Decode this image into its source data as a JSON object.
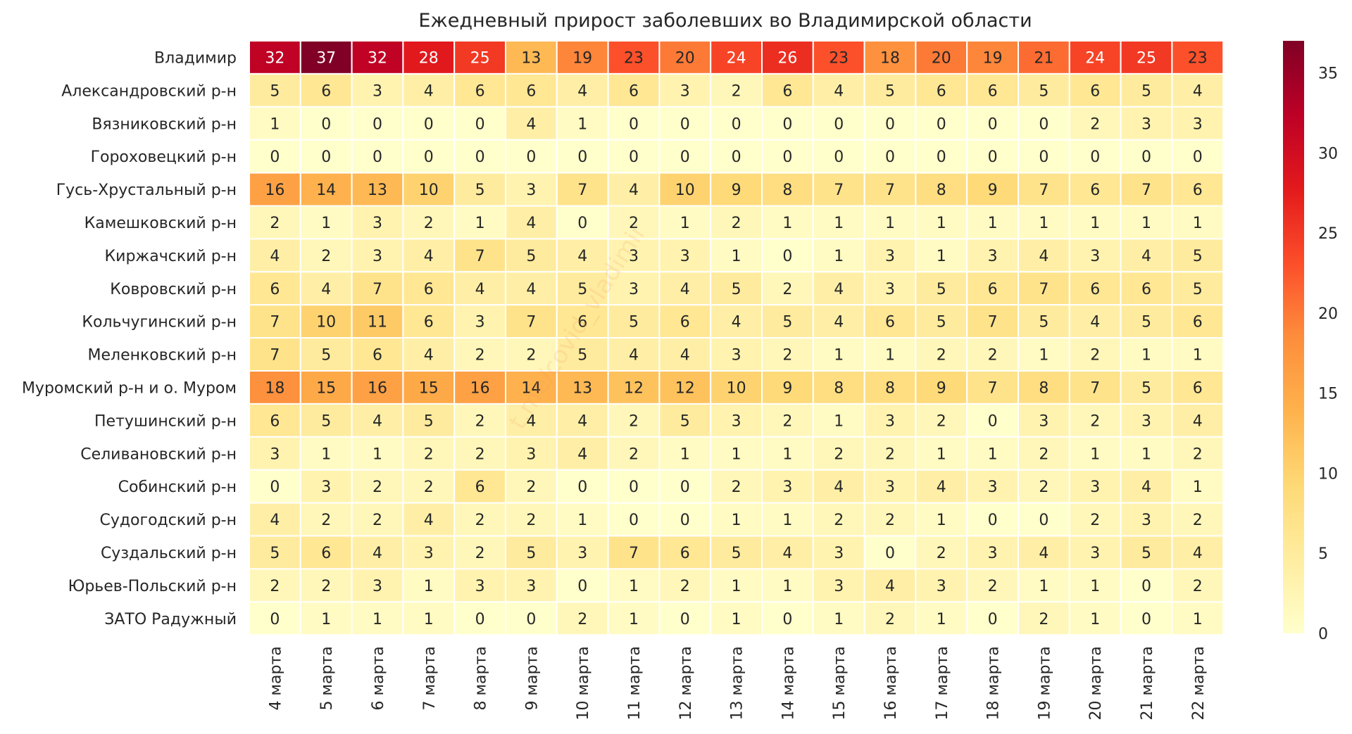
{
  "chart_data": {
    "type": "heatmap",
    "title": "Ежедневный прирост заболевших во Владимирской области",
    "rows": [
      "Владимир",
      "Александровский р-н",
      "Вязниковский р-н",
      "Гороховецкий р-н",
      "Гусь-Хрустальный р-н",
      "Камешковский р-н",
      "Киржачский р-н",
      "Ковровский р-н",
      "Кольчугинский р-н",
      "Меленковский р-н",
      "Муромский р-н и о. Муром",
      "Петушинский р-н",
      "Селивановский р-н",
      "Собинский р-н",
      "Судогодский р-н",
      "Суздальский р-н",
      "Юрьев-Польский р-н",
      "ЗАТО Радужный"
    ],
    "columns": [
      "4 марта",
      "5 марта",
      "6 марта",
      "7 марта",
      "8 марта",
      "9 марта",
      "10 марта",
      "11 марта",
      "12 марта",
      "13 марта",
      "14 марта",
      "15 марта",
      "16 марта",
      "17 марта",
      "18 марта",
      "19 марта",
      "20 марта",
      "21 марта",
      "22 марта"
    ],
    "values": [
      [
        32,
        37,
        32,
        28,
        25,
        13,
        19,
        23,
        20,
        24,
        26,
        23,
        18,
        20,
        19,
        21,
        24,
        25,
        23
      ],
      [
        5,
        6,
        3,
        4,
        6,
        6,
        4,
        6,
        3,
        2,
        6,
        4,
        5,
        6,
        6,
        5,
        6,
        5,
        4
      ],
      [
        1,
        0,
        0,
        0,
        0,
        4,
        1,
        0,
        0,
        0,
        0,
        0,
        0,
        0,
        0,
        0,
        2,
        3,
        3
      ],
      [
        0,
        0,
        0,
        0,
        0,
        0,
        0,
        0,
        0,
        0,
        0,
        0,
        0,
        0,
        0,
        0,
        0,
        0,
        0
      ],
      [
        16,
        14,
        13,
        10,
        5,
        3,
        7,
        4,
        10,
        9,
        8,
        7,
        7,
        8,
        9,
        7,
        6,
        7,
        6
      ],
      [
        2,
        1,
        3,
        2,
        1,
        4,
        0,
        2,
        1,
        2,
        1,
        1,
        1,
        1,
        1,
        1,
        1,
        1,
        1
      ],
      [
        4,
        2,
        3,
        4,
        7,
        5,
        4,
        3,
        3,
        1,
        0,
        1,
        3,
        1,
        3,
        4,
        3,
        4,
        5
      ],
      [
        6,
        4,
        7,
        6,
        4,
        4,
        5,
        3,
        4,
        5,
        2,
        4,
        3,
        5,
        6,
        7,
        6,
        6,
        5
      ],
      [
        7,
        10,
        11,
        6,
        3,
        7,
        6,
        5,
        6,
        4,
        5,
        4,
        6,
        5,
        7,
        5,
        4,
        5,
        6
      ],
      [
        7,
        5,
        6,
        4,
        2,
        2,
        5,
        4,
        4,
        3,
        2,
        1,
        1,
        2,
        2,
        1,
        2,
        1,
        1
      ],
      [
        18,
        15,
        16,
        15,
        16,
        14,
        13,
        12,
        12,
        10,
        9,
        8,
        8,
        9,
        7,
        8,
        7,
        5,
        6
      ],
      [
        6,
        5,
        4,
        5,
        2,
        4,
        4,
        2,
        5,
        3,
        2,
        1,
        3,
        2,
        0,
        3,
        2,
        3,
        4
      ],
      [
        3,
        1,
        1,
        2,
        2,
        3,
        4,
        2,
        1,
        1,
        1,
        2,
        2,
        1,
        1,
        2,
        1,
        1,
        2
      ],
      [
        0,
        3,
        2,
        2,
        6,
        2,
        0,
        0,
        0,
        2,
        3,
        4,
        3,
        4,
        3,
        2,
        3,
        4,
        1
      ],
      [
        4,
        2,
        2,
        4,
        2,
        2,
        1,
        0,
        0,
        1,
        1,
        2,
        2,
        1,
        0,
        0,
        2,
        3,
        2
      ],
      [
        5,
        6,
        4,
        3,
        2,
        5,
        3,
        7,
        6,
        5,
        4,
        3,
        0,
        2,
        3,
        4,
        3,
        5,
        4
      ],
      [
        2,
        2,
        3,
        1,
        3,
        3,
        0,
        1,
        2,
        1,
        1,
        3,
        4,
        3,
        2,
        1,
        1,
        0,
        2
      ],
      [
        0,
        1,
        1,
        1,
        0,
        0,
        2,
        1,
        0,
        1,
        0,
        1,
        2,
        1,
        0,
        2,
        1,
        0,
        1
      ]
    ],
    "colorbar": {
      "min": 0,
      "max": 37,
      "ticks": [
        0,
        5,
        10,
        15,
        20,
        25,
        30,
        35
      ],
      "colormap": "YlOrRd",
      "position": "right"
    },
    "watermark": "t.me/covid_vladimir"
  }
}
